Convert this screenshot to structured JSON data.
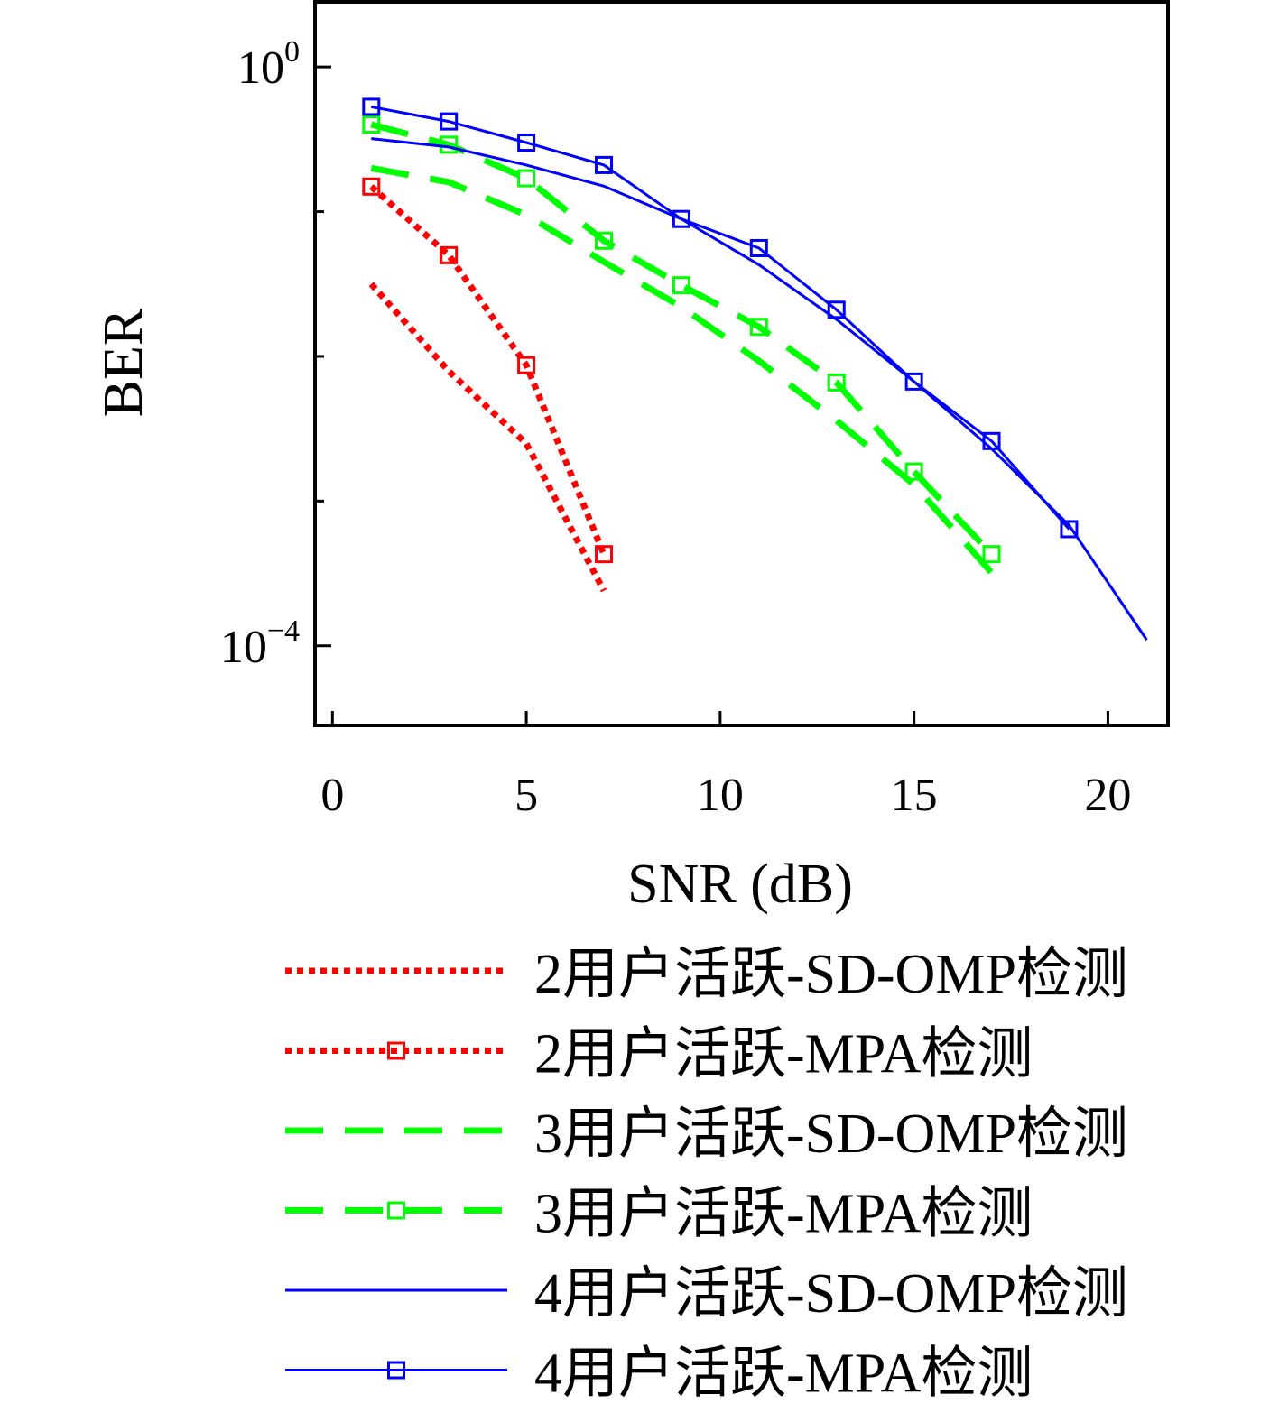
{
  "chart_data": {
    "type": "line",
    "xlabel": "SNR (dB)",
    "ylabel": "BER",
    "xlim": [
      -0.45,
      21.55
    ],
    "ylim_log10": [
      -4.55,
      0.45
    ],
    "y_scale": "log",
    "x_ticks": [
      0,
      5,
      10,
      15,
      20
    ],
    "x_tick_labels": [
      "0",
      "5",
      "10",
      "15",
      "20"
    ],
    "y_ticks": [
      {
        "value": 1,
        "base": "10",
        "exp": "0"
      },
      {
        "value": 0.0001,
        "base": "10",
        "exp": "−4"
      }
    ],
    "y_minor_ticks": [
      0.1,
      0.01,
      0.001
    ],
    "grid": false,
    "legend_position": "below-plot",
    "series": [
      {
        "name": "2用户活跃-SD-OMP检测",
        "color": "#ff0000",
        "style": "dotted",
        "marker": "none",
        "x": [
          1,
          3,
          5,
          7
        ],
        "y": [
          0.0316,
          0.0079,
          0.0025,
          0.00024
        ]
      },
      {
        "name": "2用户活跃-MPA检测",
        "color": "#ff0000",
        "style": "dotted",
        "marker": "square",
        "x": [
          1,
          3,
          5,
          7
        ],
        "y": [
          0.149,
          0.05,
          0.0087,
          0.00043
        ]
      },
      {
        "name": "3用户活跃-SD-OMP检测",
        "color": "#00ff00",
        "style": "dashed",
        "marker": "none",
        "x": [
          1,
          3,
          5,
          7,
          9,
          11,
          13,
          15,
          17
        ],
        "y": [
          0.2,
          0.16,
          0.095,
          0.045,
          0.022,
          0.0093,
          0.0036,
          0.0013,
          0.00032
        ]
      },
      {
        "name": "3用户活跃-MPA检测",
        "color": "#00ff00",
        "style": "dashed",
        "marker": "square",
        "x": [
          1,
          3,
          5,
          7,
          9,
          11,
          13,
          15,
          17
        ],
        "y": [
          0.4,
          0.29,
          0.17,
          0.063,
          0.031,
          0.016,
          0.0066,
          0.0016,
          0.00043
        ]
      },
      {
        "name": "4用户活跃-SD-OMP检测",
        "color": "#0000ff",
        "style": "solid",
        "marker": "none",
        "x": [
          1,
          3,
          5,
          7,
          9,
          11,
          13,
          15,
          17,
          19,
          21
        ],
        "y": [
          0.32,
          0.28,
          0.21,
          0.15,
          0.089,
          0.043,
          0.018,
          0.0067,
          0.0023,
          0.00068,
          0.00011
        ]
      },
      {
        "name": "4用户活跃-MPA检测",
        "color": "#0000ff",
        "style": "solid",
        "marker": "square",
        "x": [
          1,
          3,
          5,
          7,
          9,
          11,
          13,
          15,
          17,
          19
        ],
        "y": [
          0.53,
          0.42,
          0.3,
          0.21,
          0.089,
          0.056,
          0.021,
          0.0067,
          0.0026,
          0.00064
        ]
      }
    ]
  }
}
